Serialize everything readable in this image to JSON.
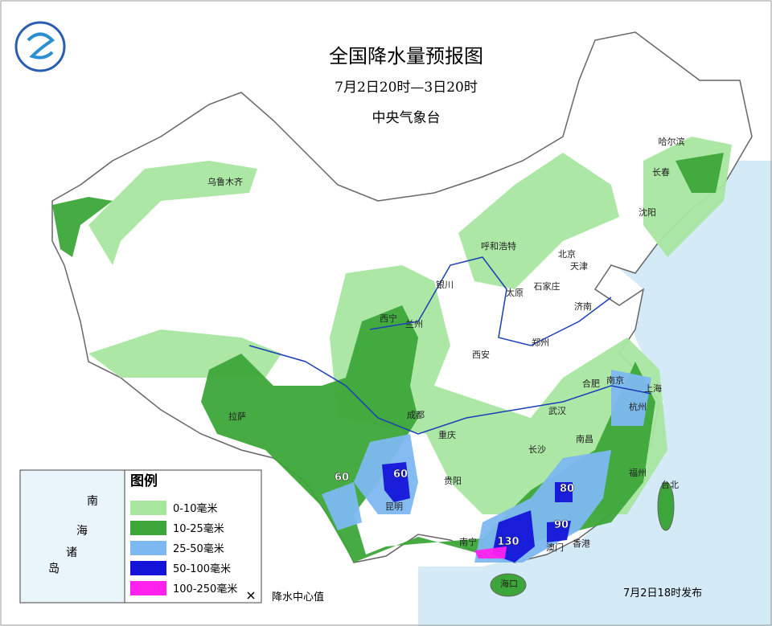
{
  "header": {
    "title": "全国降水量预报图",
    "period": "7月2日20时—3日20时",
    "issuer": "中央气象台"
  },
  "legend": {
    "title": "图例",
    "items": [
      {
        "label": "0-10毫米",
        "color": "#a8e6a0"
      },
      {
        "label": "10-25毫米",
        "color": "#3da63a"
      },
      {
        "label": "25-50毫米",
        "color": "#7db8f0"
      },
      {
        "label": "50-100毫米",
        "color": "#1414d8"
      },
      {
        "label": "100-250毫米",
        "color": "#ff22ee"
      }
    ],
    "center_label": "降水中心值"
  },
  "cities": [
    "乌鲁木齐",
    "哈尔滨",
    "长春",
    "沈阳",
    "呼和浩特",
    "北京",
    "天津",
    "银川",
    "太原",
    "石家庄",
    "济南",
    "西宁",
    "兰州",
    "郑州",
    "西安",
    "合肥",
    "南京",
    "上海",
    "杭州",
    "武汉",
    "成都",
    "重庆",
    "拉萨",
    "长沙",
    "南昌",
    "贵阳",
    "昆明",
    "福州",
    "台北",
    "南宁",
    "澳门",
    "香港",
    "海口"
  ],
  "rain_centers": [
    60,
    60,
    80,
    90,
    130
  ],
  "inset": {
    "label": [
      "南",
      "海",
      "诸",
      "岛"
    ]
  },
  "footer": "7月2日18时发布"
}
